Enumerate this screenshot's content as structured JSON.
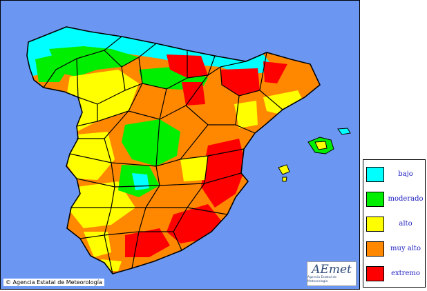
{
  "copyright": "© Agencia Estatal de Meteorología",
  "logo": {
    "text": "AEmet",
    "subtitle": "Agencia Estatal de Meteorología"
  },
  "legend": {
    "items": [
      {
        "label": "bajo",
        "color": "#00ffff"
      },
      {
        "label": "moderado",
        "color": "#00ee00"
      },
      {
        "label": "alto",
        "color": "#ffff00"
      },
      {
        "label": "muy alto",
        "color": "#ff8800"
      },
      {
        "label": "extremo",
        "color": "#ff0000"
      }
    ]
  },
  "colors": {
    "sea": "#6b97f2",
    "land_base": "#ff8800",
    "border": "#000000"
  }
}
